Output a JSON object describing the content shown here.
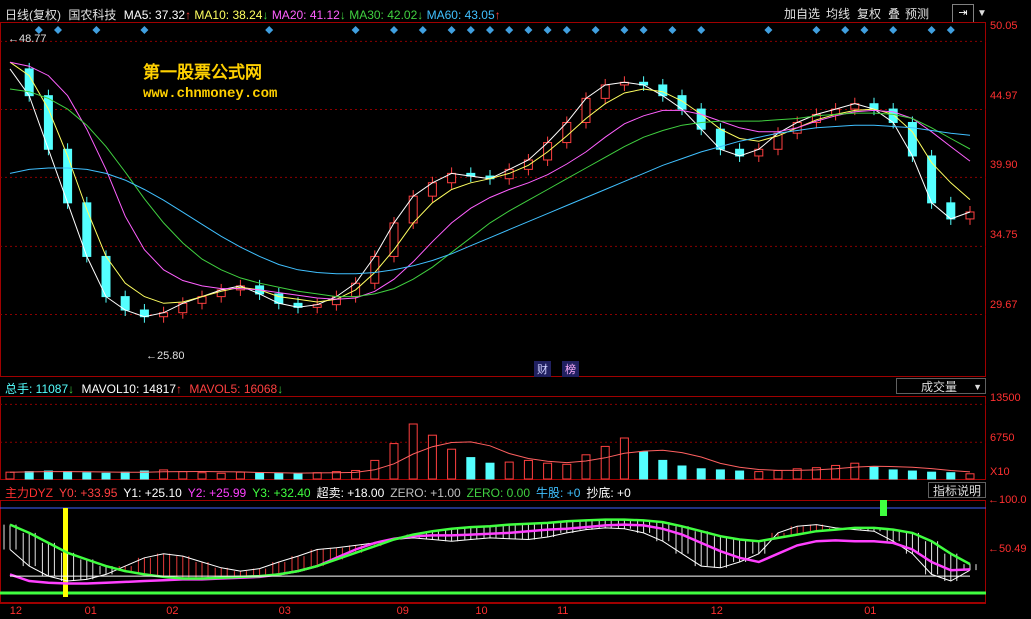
{
  "header": {
    "period": "日线(复权)",
    "stock": "国农科技",
    "ma5": "MA5: 37.32",
    "ma10": "MA10: 38.24",
    "ma20": "MA20: 41.12",
    "ma30": "MA30: 42.02",
    "ma60": "MA60: 43.05",
    "buttons": [
      "加自选",
      "均线",
      "复权",
      "叠",
      "预测"
    ]
  },
  "watermark": {
    "line1": "第一股票公式网",
    "line2": "www.chnmoney.com"
  },
  "price_panel": {
    "axis": [
      "50.05",
      "44.97",
      "39.90",
      "34.75",
      "29.67"
    ],
    "high_label": "48.77",
    "low_label": "25.80",
    "event_labels": [
      "财",
      "榜"
    ]
  },
  "volume_panel": {
    "legend_total": "总手: 11087",
    "legend_mavol10": "MAVOL10: 14817",
    "legend_mavol5": "MAVOL5: 16068",
    "dropdown": "成交量",
    "axis": [
      "13500",
      "6750"
    ],
    "unit": "X10"
  },
  "indicator_panel": {
    "legend": [
      {
        "text": "主力DYZ",
        "color": "#ff3030"
      },
      {
        "text": "Y0: +33.95",
        "color": "#ff4040"
      },
      {
        "text": "Y1: +25.10",
        "color": "#ffffff"
      },
      {
        "text": "Y2: +25.99",
        "color": "#ff40ff"
      },
      {
        "text": "Y3: +32.40",
        "color": "#40ff40"
      },
      {
        "text": "超卖: +18.00",
        "color": "#ffffff"
      },
      {
        "text": "ZERO: +1.00",
        "color": "#c0c0c0"
      },
      {
        "text": "ZERO: 0.00",
        "color": "#40d040"
      },
      {
        "text": "牛股: +0",
        "color": "#40c0ff"
      },
      {
        "text": "抄底: +0",
        "color": "#ffffff"
      }
    ],
    "help_button": "指标说明",
    "axis": [
      "100.0",
      "50.49"
    ]
  },
  "x_axis": [
    "12",
    "01",
    "02",
    "03",
    "09",
    "10",
    "11",
    "12",
    "01"
  ],
  "colors": {
    "up": "#ff4040",
    "down": "#54ffff",
    "ma5": "#ffffff",
    "ma10": "#ffff60",
    "ma20": "#ff60ff",
    "ma30": "#40d040",
    "ma60": "#40c0ff",
    "grid": "#8c0000"
  },
  "chart_data": [
    {
      "type": "line",
      "title": "",
      "y_range": [
        25.0,
        51.5
      ],
      "series": [
        {
          "name": "MA5",
          "color": "#ffffff",
          "values": [
            48,
            46,
            42,
            38,
            34,
            31,
            30,
            29.5,
            29.8,
            30.5,
            31,
            31.5,
            31.8,
            31.2,
            30.5,
            30.2,
            30.4,
            31,
            32,
            34,
            36.5,
            38.5,
            39.5,
            40.2,
            40,
            39.8,
            40.5,
            41.2,
            42.5,
            44,
            45.8,
            46.8,
            47,
            46.8,
            46,
            45,
            43.5,
            42,
            41.5,
            42,
            43.2,
            44,
            44.6,
            45,
            45.4,
            45,
            44,
            41.5,
            38,
            36.8,
            37.32
          ]
        },
        {
          "name": "MA10",
          "color": "#ffff60",
          "values": [
            48.5,
            47.5,
            45,
            41.5,
            37.5,
            34,
            32,
            31,
            30.5,
            30.6,
            31,
            31.4,
            31.7,
            31.5,
            31,
            30.8,
            30.6,
            30.8,
            31.5,
            32.8,
            34.5,
            36.5,
            38,
            39,
            39.5,
            39.8,
            40.2,
            40.8,
            41.8,
            43,
            44.3,
            45.4,
            46.2,
            46.5,
            46.3,
            45.6,
            44.6,
            43.5,
            42.8,
            42.6,
            43,
            43.6,
            44.2,
            44.6,
            44.9,
            45,
            44.6,
            43.3,
            41,
            39.5,
            38.24
          ]
        },
        {
          "name": "MA20",
          "color": "#ff60ff",
          "values": [
            48.5,
            48.2,
            47.5,
            46,
            43.5,
            40.5,
            37,
            34.5,
            33,
            32.2,
            31.8,
            31.6,
            31.6,
            31.5,
            31.3,
            31.1,
            30.9,
            30.8,
            30.9,
            31.4,
            32.3,
            33.6,
            35.1,
            36.5,
            37.6,
            38.4,
            39,
            39.5,
            40.1,
            40.9,
            41.8,
            42.9,
            43.9,
            44.5,
            44.9,
            44.9,
            44.6,
            44.1,
            43.6,
            43.3,
            43.3,
            43.6,
            44.1,
            44.5,
            44.8,
            44.9,
            44.8,
            44.3,
            43.3,
            42.2,
            41.12
          ]
        },
        {
          "name": "MA30",
          "color": "#40d040",
          "values": [
            46.5,
            46.3,
            45.8,
            45,
            43.8,
            42.2,
            40.3,
            38.3,
            36.5,
            35,
            33.8,
            33,
            32.4,
            32,
            31.7,
            31.4,
            31.2,
            31,
            31,
            31.2,
            31.6,
            32.3,
            33.2,
            34.3,
            35.4,
            36.5,
            37.4,
            38.2,
            39,
            39.8,
            40.6,
            41.4,
            42.2,
            42.9,
            43.4,
            43.8,
            44,
            44.1,
            44.1,
            44.1,
            44.2,
            44.3,
            44.5,
            44.6,
            44.7,
            44.7,
            44.6,
            44.3,
            43.6,
            42.8,
            42.02
          ]
        },
        {
          "name": "MA60",
          "color": "#40c0ff",
          "values": [
            40.2,
            40.5,
            40.6,
            40.6,
            40.5,
            40.2,
            39.7,
            39,
            38.2,
            37.3,
            36.4,
            35.5,
            34.7,
            34,
            33.4,
            33,
            32.8,
            32.7,
            32.7,
            32.8,
            33,
            33.3,
            33.7,
            34.2,
            34.8,
            35.4,
            36,
            36.6,
            37.2,
            37.8,
            38.4,
            39,
            39.6,
            40.2,
            40.8,
            41.3,
            41.8,
            42.2,
            42.6,
            42.9,
            43.2,
            43.4,
            43.6,
            43.7,
            43.8,
            43.8,
            43.7,
            43.6,
            43.4,
            43.2,
            43.05
          ]
        }
      ]
    },
    {
      "type": "bar",
      "title": "",
      "y_range": [
        0,
        15000
      ],
      "values": [
        1400,
        1500,
        1600,
        1500,
        1300,
        1200,
        1400,
        1600,
        1800,
        1500,
        1300,
        1200,
        1400,
        1300,
        1200,
        1100,
        1300,
        1500,
        1700,
        3500,
        6500,
        10000,
        8000,
        5500,
        4000,
        3000,
        3200,
        3500,
        3000,
        2800,
        4500,
        6000,
        7500,
        5000,
        3500,
        2500,
        2000,
        1800,
        1600,
        1500,
        1700,
        2000,
        2200,
        2600,
        3000,
        2400,
        1800,
        1600,
        1400,
        1300,
        1108.7
      ]
    },
    {
      "type": "line",
      "title": "",
      "y_range": [
        0,
        100
      ],
      "series": [
        {
          "name": "Y1",
          "color": "#ffffff",
          "values": [
            50,
            30,
            18,
            12,
            14,
            20,
            30,
            40,
            45,
            42,
            35,
            28,
            24,
            27,
            35,
            42,
            50,
            52,
            55,
            58,
            62,
            64,
            62,
            60,
            62,
            64,
            63,
            62,
            65,
            70,
            74,
            76,
            75,
            70,
            60,
            45,
            30,
            28,
            35,
            45,
            70,
            78,
            80,
            76,
            74,
            72,
            60,
            45,
            20,
            12,
            25.1
          ]
        },
        {
          "name": "Y2",
          "color": "#ff40ff",
          "values": [
            20,
            12,
            10,
            9,
            9,
            10,
            11,
            12,
            13,
            14,
            14,
            15,
            16,
            17,
            20,
            24,
            30,
            40,
            50,
            58,
            63,
            66,
            67,
            67,
            68,
            69,
            70,
            72,
            74,
            75,
            77,
            79,
            80,
            79,
            75,
            68,
            58,
            48,
            40,
            35,
            45,
            55,
            60,
            61,
            60,
            60,
            58,
            50,
            35,
            25,
            25.99
          ]
        },
        {
          "name": "Y3",
          "color": "#40ff40",
          "values": [
            80,
            70,
            58,
            46,
            38,
            30,
            24,
            20,
            17,
            15,
            15,
            16,
            17,
            18,
            20,
            24,
            30,
            38,
            46,
            54,
            62,
            68,
            72,
            75,
            77,
            78,
            80,
            81,
            82,
            84,
            85,
            86,
            86,
            85,
            83,
            78,
            72,
            66,
            62,
            60,
            64,
            68,
            72,
            74,
            76,
            76,
            74,
            70,
            60,
            45,
            32.4
          ]
        },
        {
          "name": "超卖",
          "color": "#ffffff",
          "values": [
            18,
            18,
            18,
            18,
            18,
            18,
            18,
            18,
            18,
            18,
            18,
            18,
            18,
            18,
            18,
            18,
            18,
            18,
            18,
            18,
            18,
            18,
            18,
            18,
            18,
            18,
            18,
            18,
            18,
            18,
            18,
            18,
            18,
            18,
            18,
            18,
            18,
            18,
            18,
            18,
            18,
            18,
            18,
            18,
            18,
            18,
            18,
            18,
            18,
            18,
            18
          ]
        }
      ]
    }
  ]
}
